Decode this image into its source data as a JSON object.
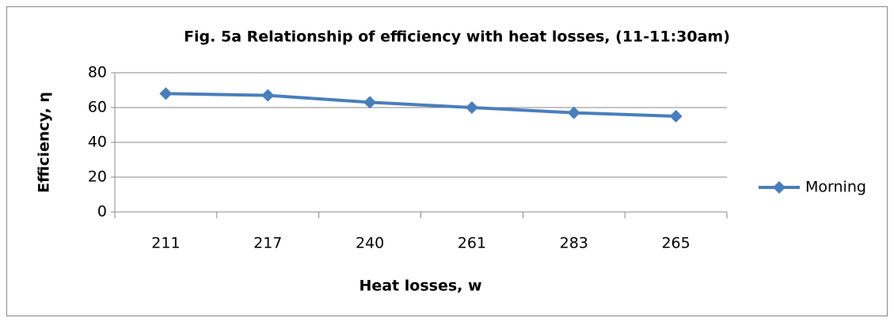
{
  "chart_data": {
    "type": "line",
    "title": "Fig. 5a Relationship of efficiency with heat losses,  (11-11:30am)",
    "x_label": "Heat losses, w",
    "y_label": "Efficiency, η",
    "categories": [
      "211",
      "217",
      "240",
      "261",
      "283",
      "265"
    ],
    "series": [
      {
        "name": "Morning",
        "color": "#4a7ebb",
        "values": [
          68,
          67,
          63,
          60,
          57,
          55
        ]
      }
    ],
    "ylim": [
      0,
      80
    ],
    "yticks": [
      0,
      20,
      40,
      60,
      80
    ],
    "grid": true,
    "legend": "right"
  }
}
